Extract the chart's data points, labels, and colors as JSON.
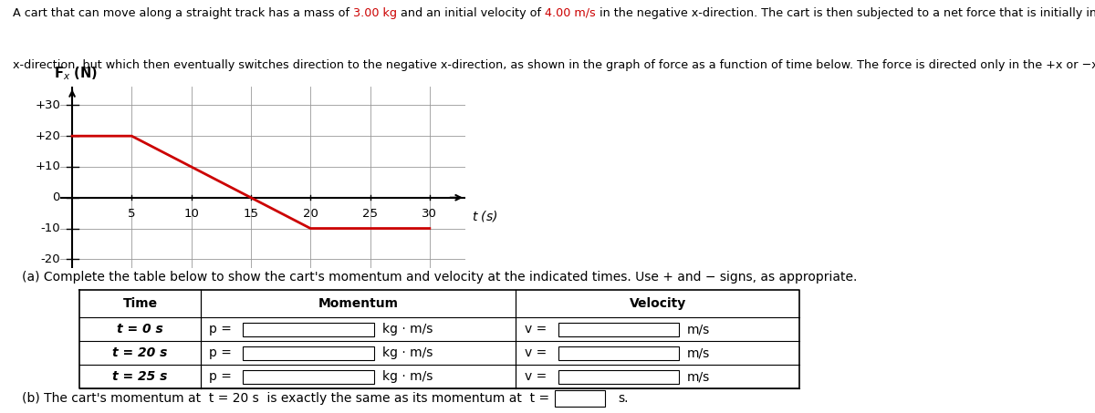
{
  "mass": "3.00",
  "initial_velocity": "4.00",
  "graph": {
    "t_values": [
      0,
      5,
      20,
      30
    ],
    "F_values": [
      20,
      20,
      -10,
      -10
    ],
    "xlim": [
      -1,
      33
    ],
    "ylim": [
      -23,
      36
    ],
    "yticks": [
      -20,
      -10,
      0,
      10,
      20,
      30
    ],
    "ytick_labels": [
      "-20",
      "-10",
      "0",
      "+10",
      "+20",
      "+30"
    ],
    "xticks": [
      5,
      10,
      15,
      20,
      25,
      30
    ],
    "line_color": "#cc0000",
    "line_width": 2.0,
    "grid_color": "#999999",
    "grid_linewidth": 0.6
  },
  "part_a_text": "(a) Complete the table below to show the cart's momentum and velocity at the indicated times. Use + and − signs, as appropriate.",
  "table_rows": [
    "t = 0 s",
    "t = 20 s",
    "t = 25 s"
  ],
  "part_b_text": "(b) The cart's momentum at  t = 20 s  is exactly the same as its momentum at  t =",
  "part_b_suffix": "s.",
  "bg_color": "#ffffff",
  "text_color": "#000000",
  "highlight_color": "#cc0000",
  "desc_fontsize": 9.2,
  "axis_fontsize": 9.5,
  "table_fontsize": 10.0
}
